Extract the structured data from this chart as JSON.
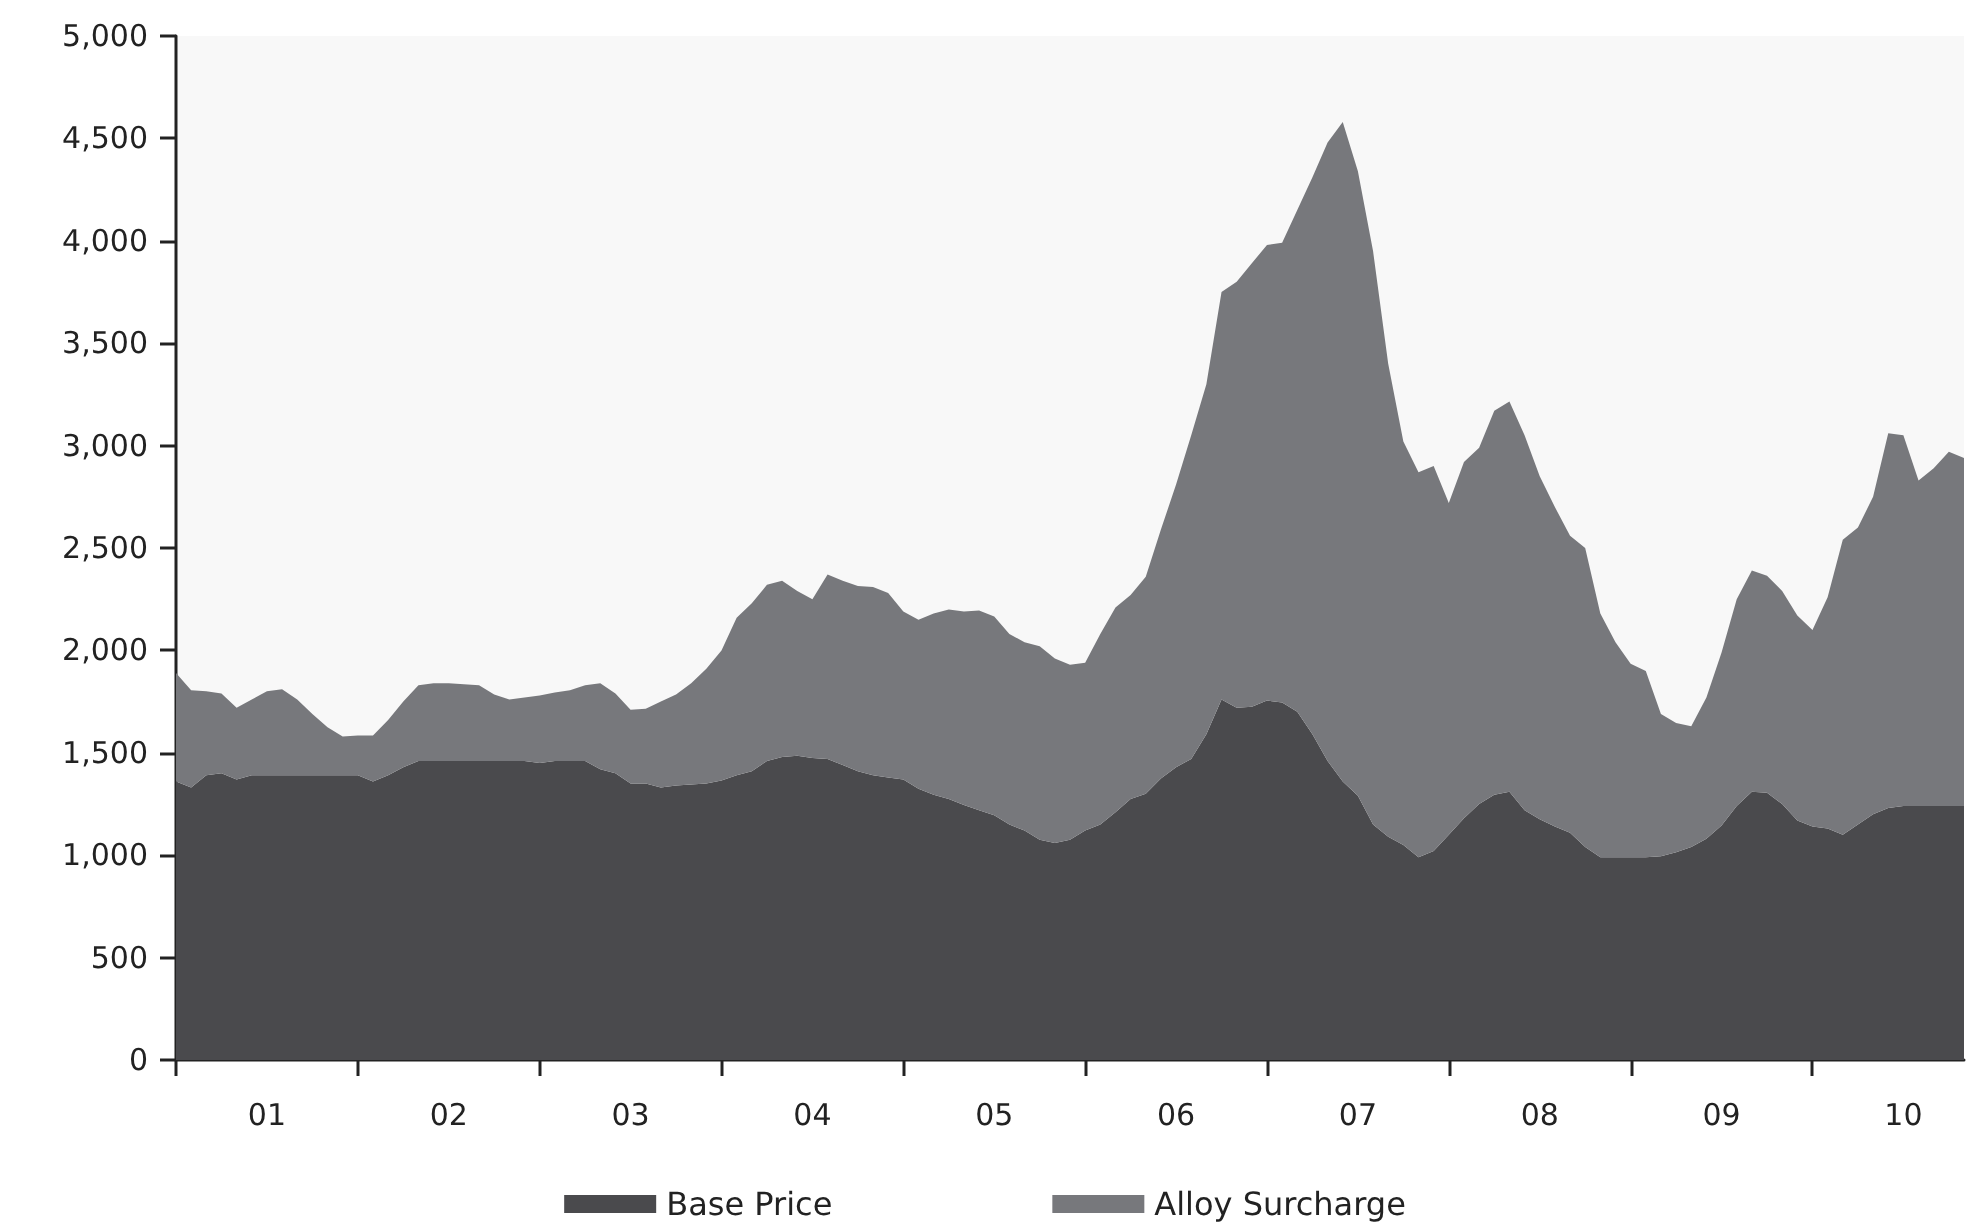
{
  "chart_data": {
    "type": "area",
    "stacked": true,
    "categories": [
      null,
      null,
      null,
      null,
      null,
      null,
      "01",
      null,
      null,
      null,
      null,
      null,
      null,
      null,
      null,
      null,
      null,
      null,
      "02",
      null,
      null,
      null,
      null,
      null,
      null,
      null,
      null,
      null,
      null,
      null,
      "03",
      null,
      null,
      null,
      null,
      null,
      null,
      null,
      null,
      null,
      null,
      null,
      "04",
      null,
      null,
      null,
      null,
      null,
      null,
      null,
      null,
      null,
      null,
      null,
      "05",
      null,
      null,
      null,
      null,
      null,
      null,
      null,
      null,
      null,
      null,
      null,
      "06",
      null,
      null,
      null,
      null,
      null,
      null,
      null,
      null,
      null,
      null,
      null,
      "07",
      null,
      null,
      null,
      null,
      null,
      null,
      null,
      null,
      null,
      null,
      null,
      "08",
      null,
      null,
      null,
      null,
      null,
      null,
      null,
      null,
      null,
      null,
      null,
      "09",
      null,
      null,
      null,
      null,
      null,
      null,
      null,
      null,
      null,
      null,
      null,
      "10",
      null,
      null,
      null,
      null
    ],
    "series": [
      {
        "name": "Base Price",
        "color": "#4a4a4d",
        "values": [
          1360,
          1330,
          1390,
          1400,
          1370,
          1390,
          1390,
          1390,
          1390,
          1390,
          1390,
          1390,
          1390,
          1360,
          1390,
          1430,
          1460,
          1460,
          1460,
          1460,
          1460,
          1460,
          1460,
          1460,
          1450,
          1460,
          1460,
          1460,
          1420,
          1400,
          1350,
          1350,
          1330,
          1340,
          1345,
          1350,
          1365,
          1390,
          1410,
          1460,
          1480,
          1485,
          1475,
          1470,
          1440,
          1410,
          1390,
          1380,
          1370,
          1325,
          1295,
          1275,
          1245,
          1220,
          1195,
          1150,
          1120,
          1075,
          1060,
          1075,
          1120,
          1150,
          1210,
          1275,
          1300,
          1375,
          1430,
          1470,
          1590,
          1760,
          1720,
          1725,
          1755,
          1745,
          1700,
          1590,
          1460,
          1360,
          1290,
          1150,
          1090,
          1050,
          990,
          1020,
          1100,
          1180,
          1250,
          1295,
          1310,
          1220,
          1175,
          1140,
          1110,
          1040,
          990,
          990,
          990,
          990,
          995,
          1015,
          1040,
          1080,
          1145,
          1240,
          1310,
          1305,
          1250,
          1170,
          1140,
          1130,
          1100,
          1150,
          1200,
          1230,
          1240,
          1240,
          1240,
          1240,
          1240
        ]
      },
      {
        "name": "Alloy Surcharge",
        "color": "#77787c",
        "values": [
          530,
          475,
          410,
          390,
          350,
          370,
          410,
          420,
          370,
          300,
          235,
          190,
          195,
          225,
          270,
          320,
          370,
          380,
          380,
          375,
          370,
          325,
          300,
          310,
          330,
          335,
          345,
          370,
          420,
          390,
          360,
          365,
          420,
          445,
          495,
          560,
          635,
          770,
          820,
          860,
          860,
          805,
          775,
          900,
          900,
          905,
          920,
          900,
          820,
          825,
          885,
          925,
          945,
          975,
          970,
          930,
          920,
          945,
          900,
          855,
          820,
          930,
          1000,
          995,
          1060,
          1215,
          1380,
          1580,
          1710,
          1990,
          2080,
          2165,
          2225,
          2245,
          2450,
          2720,
          3020,
          3220,
          3050,
          2800,
          2310,
          1970,
          1880,
          1880,
          1620,
          1740,
          1740,
          1875,
          1905,
          1830,
          1675,
          1560,
          1450,
          1460,
          1190,
          1050,
          945,
          910,
          695,
          630,
          590,
          690,
          845,
          1010,
          1080,
          1060,
          1040,
          1000,
          960,
          1130,
          1440,
          1450,
          1550,
          1830,
          1810,
          1590,
          1650,
          1730,
          1700
        ]
      }
    ],
    "ylim": [
      0,
      5000
    ],
    "yticks": [
      0,
      500,
      {
        "value": 1000,
        "label": "1,000"
      },
      {
        "value": 1500,
        "label": "1,500"
      },
      {
        "value": 2000,
        "label": "2,000"
      },
      {
        "value": 2500,
        "label": "2,500"
      },
      {
        "value": 3000,
        "label": "3,000"
      },
      {
        "value": 3500,
        "label": "3,500"
      },
      {
        "value": 4000,
        "label": "4,000"
      },
      {
        "value": 4500,
        "label": "4,500"
      },
      {
        "value": 5000,
        "label": "5,000"
      }
    ],
    "legend": "bottom",
    "grid": false
  }
}
